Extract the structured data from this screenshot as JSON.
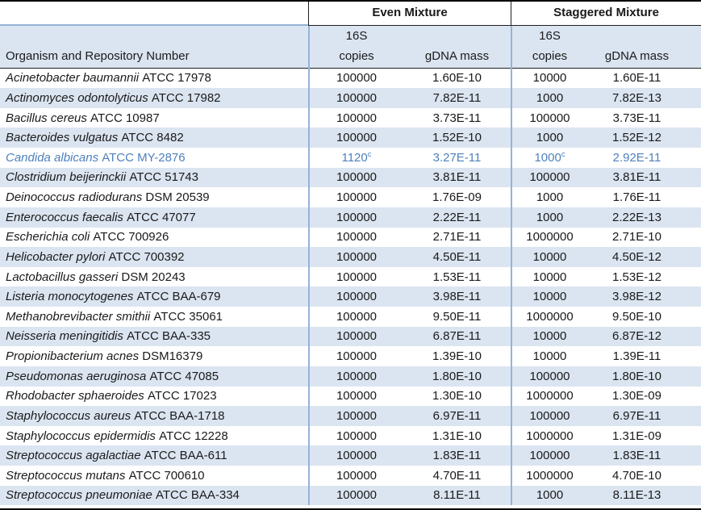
{
  "table": {
    "colors": {
      "band": "#dbe5f1",
      "border_blue": "#95b3d7",
      "border_black": "#000000",
      "highlight_text": "#4f81bd",
      "text": "#1a1a1a"
    },
    "header": {
      "even_label": "Even Mixture",
      "staggered_label": "Staggered Mixture",
      "organism_label": "Organism and Repository Number",
      "copies_line1": "16S",
      "copies_line2": "copies",
      "gdna_label": "gDNA mass"
    },
    "rows": [
      {
        "organism": "Acinetobacter baumannii",
        "repository": "ATCC 17978",
        "even_copies": "100000",
        "even_mass": "1.60E-10",
        "stag_copies": "10000",
        "stag_mass": "1.60E-11"
      },
      {
        "organism": "Actinomyces odontolyticus",
        "repository": "ATCC 17982",
        "even_copies": "100000",
        "even_mass": "7.82E-11",
        "stag_copies": "1000",
        "stag_mass": "7.82E-13"
      },
      {
        "organism": "Bacillus cereus",
        "repository": "ATCC 10987",
        "even_copies": "100000",
        "even_mass": "3.73E-11",
        "stag_copies": "100000",
        "stag_mass": "3.73E-11"
      },
      {
        "organism": "Bacteroides vulgatus",
        "repository": "ATCC 8482",
        "even_copies": "100000",
        "even_mass": "1.52E-10",
        "stag_copies": "1000",
        "stag_mass": "1.52E-12"
      },
      {
        "organism": "Candida albicans",
        "repository": "ATCC MY-2876",
        "even_copies": "1120",
        "even_copies_sup": "c",
        "even_mass": "3.27E-11",
        "stag_copies": "1000",
        "stag_copies_sup": "c",
        "stag_mass": "2.92E-11",
        "highlight": true
      },
      {
        "organism": "Clostridium beijerinckii",
        "repository": "ATCC 51743",
        "even_copies": "100000",
        "even_mass": "3.81E-11",
        "stag_copies": "100000",
        "stag_mass": "3.81E-11"
      },
      {
        "organism": "Deinococcus radiodurans",
        "repository": "DSM 20539",
        "even_copies": "100000",
        "even_mass": "1.76E-09",
        "stag_copies": "1000",
        "stag_mass": "1.76E-11"
      },
      {
        "organism": "Enterococcus faecalis",
        "repository": "ATCC 47077",
        "even_copies": "100000",
        "even_mass": "2.22E-11",
        "stag_copies": "1000",
        "stag_mass": "2.22E-13"
      },
      {
        "organism": "Escherichia coli",
        "repository": "ATCC 700926",
        "even_copies": "100000",
        "even_mass": "2.71E-11",
        "stag_copies": "1000000",
        "stag_mass": "2.71E-10"
      },
      {
        "organism": "Helicobacter pylori",
        "repository": "ATCC 700392",
        "even_copies": "100000",
        "even_mass": "4.50E-11",
        "stag_copies": "10000",
        "stag_mass": "4.50E-12"
      },
      {
        "organism": "Lactobacillus gasseri",
        "repository": "DSM 20243",
        "even_copies": "100000",
        "even_mass": "1.53E-11",
        "stag_copies": "10000",
        "stag_mass": "1.53E-12"
      },
      {
        "organism": "Listeria monocytogenes",
        "repository": "ATCC BAA-679",
        "even_copies": "100000",
        "even_mass": "3.98E-11",
        "stag_copies": "10000",
        "stag_mass": "3.98E-12"
      },
      {
        "organism": "Methanobrevibacter smithii",
        "repository": "ATCC 35061",
        "even_copies": "100000",
        "even_mass": "9.50E-11",
        "stag_copies": "1000000",
        "stag_mass": "9.50E-10"
      },
      {
        "organism": "Neisseria meningitidis",
        "repository": "ATCC BAA-335",
        "even_copies": "100000",
        "even_mass": "6.87E-11",
        "stag_copies": "10000",
        "stag_mass": "6.87E-12"
      },
      {
        "organism": "Propionibacterium acnes",
        "repository": "DSM16379",
        "even_copies": "100000",
        "even_mass": "1.39E-10",
        "stag_copies": "10000",
        "stag_mass": "1.39E-11"
      },
      {
        "organism": "Pseudomonas aeruginosa",
        "repository": "ATCC 47085",
        "even_copies": "100000",
        "even_mass": "1.80E-10",
        "stag_copies": "100000",
        "stag_mass": "1.80E-10"
      },
      {
        "organism": "Rhodobacter sphaeroides",
        "repository": "ATCC 17023",
        "even_copies": "100000",
        "even_mass": "1.30E-10",
        "stag_copies": "1000000",
        "stag_mass": "1.30E-09"
      },
      {
        "organism": "Staphylococcus aureus",
        "repository": "ATCC BAA-1718",
        "even_copies": "100000",
        "even_mass": "6.97E-11",
        "stag_copies": "100000",
        "stag_mass": "6.97E-11"
      },
      {
        "organism": "Staphylococcus epidermidis",
        "repository": "ATCC 12228",
        "even_copies": "100000",
        "even_mass": "1.31E-10",
        "stag_copies": "1000000",
        "stag_mass": "1.31E-09"
      },
      {
        "organism": "Streptococcus agalactiae",
        "repository": "ATCC BAA-611",
        "even_copies": "100000",
        "even_mass": "1.83E-11",
        "stag_copies": "100000",
        "stag_mass": "1.83E-11"
      },
      {
        "organism": "Streptococcus mutans",
        "repository": "ATCC 700610",
        "even_copies": "100000",
        "even_mass": "4.70E-11",
        "stag_copies": "1000000",
        "stag_mass": "4.70E-10"
      },
      {
        "organism": "Streptococcus pneumoniae",
        "repository": "ATCC BAA-334",
        "even_copies": "100000",
        "even_mass": "8.11E-11",
        "stag_copies": "1000",
        "stag_mass": "8.11E-13"
      }
    ]
  }
}
